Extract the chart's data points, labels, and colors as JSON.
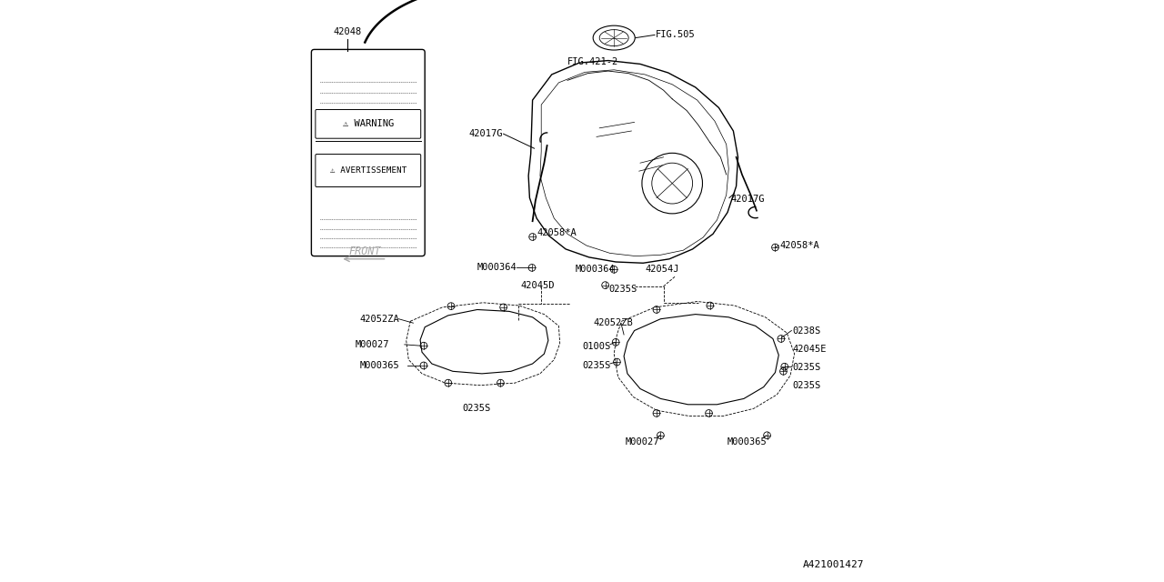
{
  "bg_color": "#ffffff",
  "line_color": "#000000",
  "diagram_id": "A421001427",
  "font_size_label": 7.5,
  "font_family": "monospace",
  "warning_label": "42048",
  "fig505_label": "FIG.505",
  "fig421_label": "FIG.421-2",
  "front_label": "FRONT",
  "warn_header": "⚠ WARNING",
  "avert_header": "⚠ AVERTISSEMENT"
}
